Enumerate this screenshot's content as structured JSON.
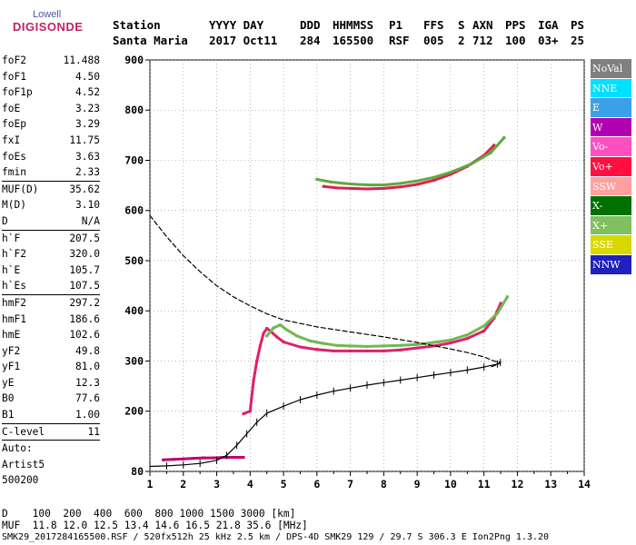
{
  "logo": {
    "top": "Lowell",
    "bottom": "DIGISONDE"
  },
  "header": {
    "row1": [
      "Station",
      "YYYY DAY",
      "DDD",
      "HHMMSS",
      "P1",
      "FFS",
      "S",
      "AXN",
      "PPS",
      "IGA",
      "PS"
    ],
    "row2": [
      "Santa Maria",
      "2017 Oct11",
      "284",
      "165500",
      "RSF",
      "005",
      "2",
      "712",
      "100",
      "03+",
      "25"
    ]
  },
  "params": [
    {
      "name": "foF2",
      "value": "11.488"
    },
    {
      "name": "foF1",
      "value": "4.50"
    },
    {
      "name": "foF1p",
      "value": "4.52"
    },
    {
      "name": "foE",
      "value": "3.23"
    },
    {
      "name": "foEp",
      "value": "3.29"
    },
    {
      "name": "fxI",
      "value": "11.75"
    },
    {
      "name": "foEs",
      "value": "3.63"
    },
    {
      "name": "fmin",
      "value": "2.33"
    },
    {
      "sep": true
    },
    {
      "name": "MUF(D)",
      "value": "35.62"
    },
    {
      "name": "M(D)",
      "value": "3.10"
    },
    {
      "name": "D",
      "value": "N/A"
    },
    {
      "sep": true
    },
    {
      "name": "h`F",
      "value": "207.5"
    },
    {
      "name": "h`F2",
      "value": "320.0"
    },
    {
      "name": "h`E",
      "value": "105.7"
    },
    {
      "name": "h`Es",
      "value": "107.5"
    },
    {
      "sep": true
    },
    {
      "name": "hmF2",
      "value": "297.2"
    },
    {
      "name": "hmF1",
      "value": "186.6"
    },
    {
      "name": "hmE",
      "value": "102.6"
    },
    {
      "name": "yF2",
      "value": "49.8"
    },
    {
      "name": "yF1",
      "value": "81.0"
    },
    {
      "name": "yE",
      "value": "12.3"
    },
    {
      "name": "B0",
      "value": "77.6"
    },
    {
      "name": "B1",
      "value": "1.00"
    },
    {
      "sep": true
    },
    {
      "name": "C-level",
      "value": "11"
    },
    {
      "sep": true
    },
    {
      "name": "Auto:",
      "value": ""
    },
    {
      "name": "Artist5",
      "value": ""
    },
    {
      "name": "500200",
      "value": ""
    }
  ],
  "legend": [
    {
      "label": "NoVal",
      "color": "#808080"
    },
    {
      "label": "NNE",
      "color": "#00e0ff"
    },
    {
      "label": "E",
      "color": "#3aa0e8"
    },
    {
      "label": "W",
      "color": "#b000b0"
    },
    {
      "label": "Vo-",
      "color": "#ff50c0"
    },
    {
      "label": "Vo+",
      "color": "#ff1040"
    },
    {
      "label": "SSW",
      "color": "#ffa0a0"
    },
    {
      "label": "X-",
      "color": "#007000"
    },
    {
      "label": "X+",
      "color": "#80c060"
    },
    {
      "label": "SSE",
      "color": "#d8d800"
    },
    {
      "label": "NNW",
      "color": "#2020c0"
    }
  ],
  "footer": {
    "d_line": "D    100  200  400  600  800 1000 1500 3000 [km]",
    "muf_line": "MUF  11.8 12.0 12.5 13.4 14.6 16.5 21.8 35.6 [MHz]",
    "file_line": "SMK29_2017284165500.RSF / 520fx512h 25 kHz 2.5 km / DPS-4D SMK29 129 / 29.7 S 306.3 E Ion2Png 1.3.20"
  },
  "chart_data": {
    "type": "scatter",
    "xlabel": "",
    "ylabel": "",
    "xlim": [
      1,
      14
    ],
    "ylim": [
      80,
      900
    ],
    "xticks": [
      1,
      2,
      3,
      4,
      5,
      6,
      7,
      8,
      9,
      10,
      11,
      12,
      13,
      14
    ],
    "yticks": [
      80,
      200,
      300,
      400,
      500,
      600,
      700,
      800,
      900
    ],
    "grid": "dotted",
    "series": [
      {
        "name": "Vo-",
        "color": "#e0206a",
        "x": [
          3.8,
          4.0,
          4.1,
          4.2,
          4.3,
          4.4,
          4.5,
          4.6,
          4.8,
          5.0,
          5.5,
          6.0,
          6.5,
          7.0,
          7.5,
          8.0,
          8.5,
          9.0,
          9.5,
          10.0,
          10.5,
          11.0,
          11.3,
          11.5
        ],
        "y": [
          195,
          200,
          260,
          300,
          330,
          355,
          365,
          360,
          348,
          338,
          328,
          323,
          320,
          320,
          320,
          320,
          322,
          326,
          330,
          336,
          345,
          360,
          385,
          415
        ]
      },
      {
        "name": "X+",
        "color": "#70b850",
        "x": [
          4.5,
          4.7,
          4.9,
          5.1,
          5.4,
          5.8,
          6.2,
          6.6,
          7.0,
          7.5,
          8.0,
          8.5,
          9.0,
          9.5,
          10.0,
          10.5,
          11.0,
          11.4,
          11.7
        ],
        "y": [
          350,
          366,
          372,
          362,
          350,
          340,
          335,
          331,
          330,
          329,
          330,
          331,
          333,
          337,
          342,
          352,
          370,
          395,
          428
        ]
      },
      {
        "name": "F2 echo (Vo+)",
        "color": "#e02050",
        "x": [
          6.2,
          6.6,
          7.0,
          7.5,
          8.0,
          8.5,
          9.0,
          9.5,
          10.0,
          10.5,
          11.0,
          11.3
        ],
        "y": [
          648,
          645,
          644,
          643,
          644,
          647,
          652,
          660,
          672,
          688,
          710,
          730
        ]
      },
      {
        "name": "F2 echo (X+)",
        "color": "#60a840",
        "x": [
          6.0,
          6.4,
          6.8,
          7.2,
          7.6,
          8.0,
          8.5,
          9.0,
          9.5,
          10.0,
          10.6,
          11.2,
          11.6
        ],
        "y": [
          662,
          657,
          654,
          652,
          651,
          651,
          654,
          659,
          666,
          676,
          692,
          715,
          745
        ]
      },
      {
        "name": "Es trace",
        "color": "#c00070",
        "x": [
          1.4,
          1.7,
          2.0,
          2.3,
          2.6,
          2.9,
          3.2,
          3.5,
          3.8
        ],
        "y": [
          103,
          104,
          105,
          106,
          107,
          107,
          108,
          108,
          108
        ]
      },
      {
        "name": "Profile",
        "color": "#000000",
        "x": [
          1.0,
          1.5,
          2.0,
          2.5,
          3.0,
          3.3,
          3.6,
          3.9,
          4.2,
          4.5,
          5.0,
          5.5,
          6.0,
          6.5,
          7.0,
          7.5,
          8.0,
          8.5,
          9.0,
          9.5,
          10.0,
          10.5,
          11.0,
          11.4,
          11.49
        ],
        "y": [
          90,
          91,
          93,
          96,
          102,
          112,
          132,
          155,
          178,
          196,
          210,
          223,
          232,
          240,
          246,
          252,
          257,
          262,
          267,
          272,
          277,
          282,
          288,
          294,
          297
        ]
      },
      {
        "name": "MUF curve",
        "color": "#000000",
        "x": [
          1.0,
          1.5,
          2.0,
          2.5,
          3.0,
          3.5,
          4.0,
          4.5,
          5.0,
          6.0,
          7.0,
          8.0,
          9.0,
          10.0,
          10.5,
          11.0,
          11.3,
          11.5,
          11.4,
          11.2
        ],
        "y": [
          590,
          548,
          510,
          478,
          450,
          428,
          410,
          394,
          382,
          368,
          358,
          348,
          337,
          324,
          317,
          308,
          300,
          297,
          293,
          288
        ]
      }
    ]
  }
}
